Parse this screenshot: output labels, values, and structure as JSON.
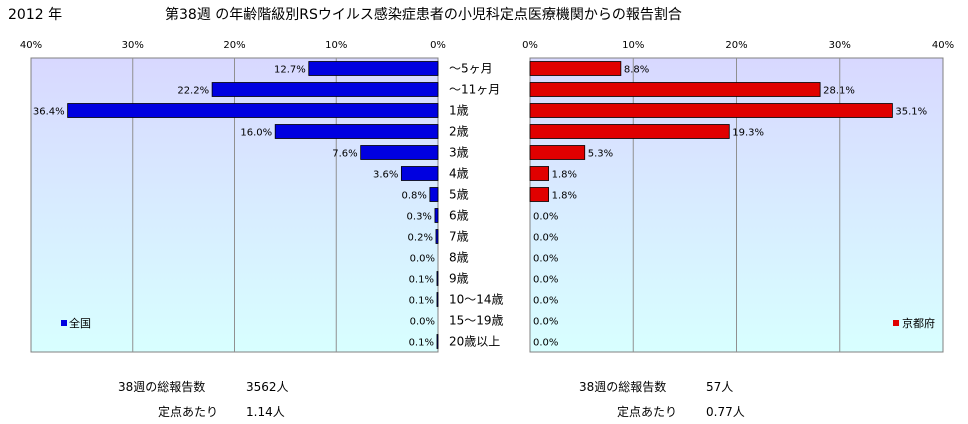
{
  "header": {
    "year": "2012 年",
    "title": "第38週 の年齢階級別RSウイルス感染症患者の小児科定点医療機関からの報告割合"
  },
  "colors": {
    "national_bar": "#0000e0",
    "kyoto_bar": "#e00000",
    "plot_top": "#d8d8ff",
    "plot_bottom": "#d8ffff"
  },
  "chart_data": [
    {
      "type": "bar",
      "orientation": "horizontal-reversed",
      "categories": [
        "～5ヶ月",
        "～11ヶ月",
        "1歳",
        "2歳",
        "3歳",
        "4歳",
        "5歳",
        "6歳",
        "7歳",
        "8歳",
        "9歳",
        "10～14歳",
        "15～19歳",
        "20歳以上"
      ],
      "series": [
        {
          "name": "全国",
          "values": [
            12.7,
            22.2,
            36.4,
            16.0,
            7.6,
            3.6,
            0.8,
            0.3,
            0.2,
            0.0,
            0.1,
            0.1,
            0.0,
            0.1
          ]
        }
      ],
      "value_labels": [
        "12.7%",
        "22.2%",
        "36.4%",
        "16.0%",
        "7.6%",
        "3.6%",
        "0.8%",
        "0.3%",
        "0.2%",
        "0.0%",
        "0.1%",
        "0.1%",
        "0.0%",
        "0.1%"
      ],
      "xlim": [
        0,
        40
      ],
      "xticks": [
        "40%",
        "30%",
        "20%",
        "10%",
        "0%"
      ],
      "grid": true,
      "legend": "bottom-left"
    },
    {
      "type": "bar",
      "orientation": "horizontal",
      "categories": [
        "～5ヶ月",
        "～11ヶ月",
        "1歳",
        "2歳",
        "3歳",
        "4歳",
        "5歳",
        "6歳",
        "7歳",
        "8歳",
        "9歳",
        "10～14歳",
        "15～19歳",
        "20歳以上"
      ],
      "series": [
        {
          "name": "京都府",
          "values": [
            8.8,
            28.1,
            35.1,
            19.3,
            5.3,
            1.8,
            1.8,
            0.0,
            0.0,
            0.0,
            0.0,
            0.0,
            0.0,
            0.0
          ]
        }
      ],
      "value_labels": [
        "8.8%",
        "28.1%",
        "35.1%",
        "19.3%",
        "5.3%",
        "1.8%",
        "1.8%",
        "0.0%",
        "0.0%",
        "0.0%",
        "0.0%",
        "0.0%",
        "0.0%",
        "0.0%"
      ],
      "xlim": [
        0,
        40
      ],
      "xticks": [
        "0%",
        "10%",
        "20%",
        "30%",
        "40%"
      ],
      "grid": true,
      "legend": "bottom-right"
    }
  ],
  "stats": {
    "national": {
      "total_label": "38週の総報告数",
      "total_value": "3562人",
      "per_label": "定点あたり",
      "per_value": "1.14人"
    },
    "kyoto": {
      "total_label": "38週の総報告数",
      "total_value": "57人",
      "per_label": "定点あたり",
      "per_value": "0.77人"
    }
  }
}
